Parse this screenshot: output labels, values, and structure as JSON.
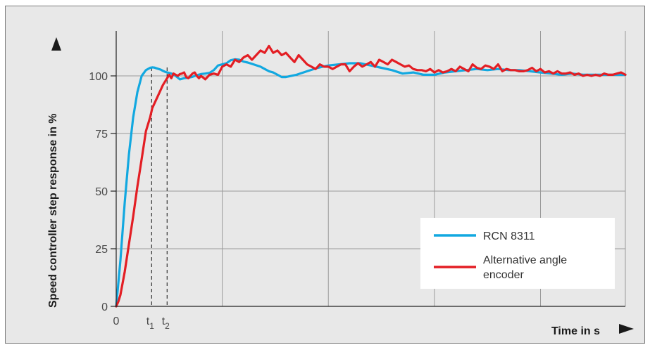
{
  "chart_data": {
    "type": "line",
    "title": "",
    "xlabel": "Time in s",
    "ylabel": "Speed controller step response in %",
    "ylim": [
      0,
      125
    ],
    "yticks": [
      0,
      25,
      50,
      75,
      100
    ],
    "x_tick_labels": [
      {
        "text": "0",
        "sub": "",
        "x": 0
      },
      {
        "text": "t",
        "sub": "1",
        "x": 16.7
      },
      {
        "text": "t",
        "sub": "2",
        "x": 24
      }
    ],
    "xlim": [
      0,
      240
    ],
    "grid": true,
    "legend_position": "bottom-right",
    "marker_lines": [
      16.7,
      24
    ],
    "series": [
      {
        "name": "RCN 8311",
        "color": "#12a8e0",
        "x": [
          0,
          2,
          4,
          6,
          8,
          10,
          12,
          14,
          16,
          17,
          18,
          19,
          20,
          21,
          22,
          23,
          24,
          26,
          28,
          30,
          32,
          34,
          36,
          38,
          40,
          42,
          44,
          46,
          48,
          50,
          52,
          54,
          56,
          58,
          60,
          62,
          64,
          66,
          68,
          70,
          72,
          74,
          76,
          78,
          80,
          85,
          90,
          95,
          100,
          105,
          110,
          115,
          120,
          125,
          130,
          135,
          140,
          145,
          150,
          155,
          160,
          165,
          170,
          175,
          180,
          185,
          190,
          195,
          200,
          205,
          210,
          215,
          220,
          225,
          230,
          235,
          240
        ],
        "values": [
          0,
          20,
          45,
          66,
          82,
          93,
          100,
          102.5,
          103.5,
          103.7,
          103.6,
          103.3,
          103,
          102.7,
          102.2,
          101.8,
          101.5,
          101,
          100,
          98.5,
          99,
          99.2,
          99.6,
          100.3,
          100.8,
          101,
          101.3,
          102.5,
          104.5,
          105,
          105.5,
          106.8,
          107.2,
          107,
          106.2,
          105.8,
          105.2,
          104.6,
          104,
          103,
          102,
          101.5,
          100.5,
          99.5,
          99.5,
          100.5,
          102,
          103.5,
          104.5,
          105,
          105.5,
          105.5,
          104.5,
          103.5,
          102.5,
          101,
          101.5,
          100.5,
          100.5,
          101.5,
          102,
          102.5,
          103,
          102.5,
          103,
          102.5,
          102.5,
          102,
          101.5,
          101,
          100.5,
          101,
          100.5,
          100.5,
          100.5,
          100.5,
          100.5
        ]
      },
      {
        "name": "Alternative angle encoder",
        "color": "#e31e24",
        "x": [
          0,
          1,
          2,
          4,
          6,
          8,
          10,
          12,
          14,
          16,
          17,
          18,
          20,
          22,
          24,
          25,
          26,
          27,
          28,
          29,
          30,
          31,
          32,
          33,
          34,
          35,
          36,
          37,
          38,
          39,
          40,
          42,
          44,
          46,
          48,
          50,
          52,
          54,
          56,
          58,
          60,
          62,
          64,
          66,
          68,
          70,
          72,
          74,
          76,
          78,
          80,
          82,
          84,
          86,
          88,
          90,
          92,
          94,
          96,
          98,
          100,
          102,
          104,
          106,
          108,
          110,
          112,
          114,
          116,
          118,
          120,
          122,
          124,
          126,
          128,
          130,
          132,
          134,
          136,
          138,
          140,
          142,
          144,
          146,
          148,
          150,
          152,
          154,
          156,
          158,
          160,
          162,
          164,
          166,
          168,
          170,
          172,
          174,
          176,
          178,
          180,
          182,
          184,
          186,
          188,
          190,
          192,
          194,
          196,
          198,
          200,
          202,
          204,
          206,
          208,
          210,
          212,
          214,
          216,
          218,
          220,
          222,
          224,
          226,
          228,
          230,
          232,
          234,
          236,
          238,
          240
        ],
        "values": [
          0,
          2,
          5,
          15,
          27,
          39,
          52,
          64,
          76,
          82,
          86,
          88,
          92,
          96,
          99,
          100.5,
          99,
          101,
          100.5,
          100,
          100.8,
          101,
          101.5,
          99.5,
          99,
          100,
          101,
          101.5,
          100,
          99,
          100,
          98.5,
          100.5,
          101,
          100.5,
          104,
          105,
          104,
          107,
          106,
          108,
          109,
          107,
          109,
          111,
          110,
          113,
          110,
          111,
          109,
          110,
          108,
          106,
          109,
          107,
          105,
          104,
          103,
          105,
          104,
          104,
          103,
          104,
          105,
          105,
          102,
          104,
          105.5,
          104,
          105,
          106,
          104,
          107,
          106,
          105,
          107,
          106,
          105,
          104,
          104.5,
          103,
          102.5,
          102.5,
          102,
          103,
          101.5,
          102.5,
          101.5,
          102,
          103,
          102,
          104,
          103,
          102,
          105,
          103.5,
          103,
          104.5,
          104,
          103,
          105,
          102,
          103,
          102.5,
          102.5,
          102,
          102,
          102.5,
          103.5,
          102,
          103,
          101.5,
          102,
          101,
          102,
          101,
          101,
          101.5,
          100.5,
          101,
          100,
          100.5,
          100,
          100.5,
          100,
          101,
          100.5,
          100.5,
          101,
          101.5,
          100.5
        ]
      }
    ]
  },
  "legend": {
    "items": [
      {
        "label": "RCN 8311",
        "color": "#12a8e0"
      },
      {
        "label": "Alternative angle encoder",
        "lines": [
          "Alternative angle",
          "encoder"
        ],
        "color": "#e31e24"
      }
    ]
  },
  "colors": {
    "frame": "#7a7a7a",
    "plot_bg": "#e8e8e8",
    "grid": "#9a9a9a",
    "axis": "#222222",
    "marker": "#333333"
  }
}
